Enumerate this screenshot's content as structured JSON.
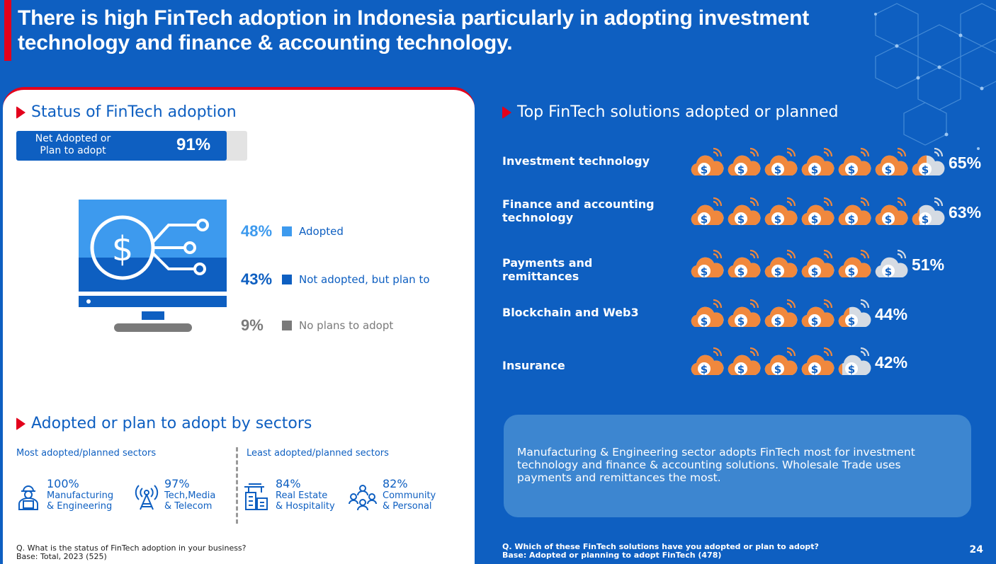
{
  "title": "There is high FinTech adoption in Indonesia particularly in adopting investment technology and finance & accounting technology.",
  "status": {
    "heading": "Status of FinTech adoption",
    "net_label": "Net Adopted or Plan to adopt",
    "net_value": "91%",
    "net_fraction": 0.91,
    "legend": [
      {
        "pct": "48%",
        "label": "Adopted",
        "color": "#3d9aee"
      },
      {
        "pct": "43%",
        "label": "Not adopted, but plan to",
        "color": "#0e5fc1"
      },
      {
        "pct": "9%",
        "label": "No plans to adopt",
        "color": "#7a7a7a"
      }
    ]
  },
  "sectors": {
    "heading": "Adopted or plan to adopt by sectors",
    "most_label": "Most adopted/planned sectors",
    "least_label": "Least adopted/planned sectors",
    "items": [
      {
        "pct": "100%",
        "line1": "Manufacturing",
        "line2": "& Engineering",
        "icon": "worker-icon"
      },
      {
        "pct": "97%",
        "line1": "Tech,Media",
        "line2": "& Telecom",
        "icon": "antenna-icon"
      },
      {
        "pct": "84%",
        "line1": "Real Estate",
        "line2": "& Hospitality",
        "icon": "building-icon"
      },
      {
        "pct": "82%",
        "line1": "Community",
        "line2": "& Personal",
        "icon": "community-icon"
      }
    ]
  },
  "solutions": {
    "heading": "Top FinTech solutions adopted or planned",
    "items": [
      {
        "label": "Investment technology",
        "pct": "65%",
        "value": 65
      },
      {
        "label": "Finance and accounting technology",
        "pct": "63%",
        "value": 63
      },
      {
        "label": "Payments and remittances",
        "pct": "51%",
        "value": 51
      },
      {
        "label": "Blockchain and Web3",
        "pct": "44%",
        "value": 44
      },
      {
        "label": "Insurance",
        "pct": "42%",
        "value": 42
      }
    ],
    "cloud_color": "#f0883d",
    "cloud_empty_color": "#d5dbe3"
  },
  "note": "Manufacturing & Engineering sector adopts FinTech most for investment technology and finance & accounting solutions. Wholesale Trade uses payments and remittances the most.",
  "footnote_left": {
    "q": "Q. What is the status of FinTech adoption in your business?",
    "base": "Base: Total, 2023 (525)"
  },
  "footnote_right": {
    "q": "Q. Which of these FinTech solutions have you adopted or plan to adopt?",
    "base": "Base: Adopted or planning to adopt FinTech (478)"
  },
  "page_number": "24"
}
